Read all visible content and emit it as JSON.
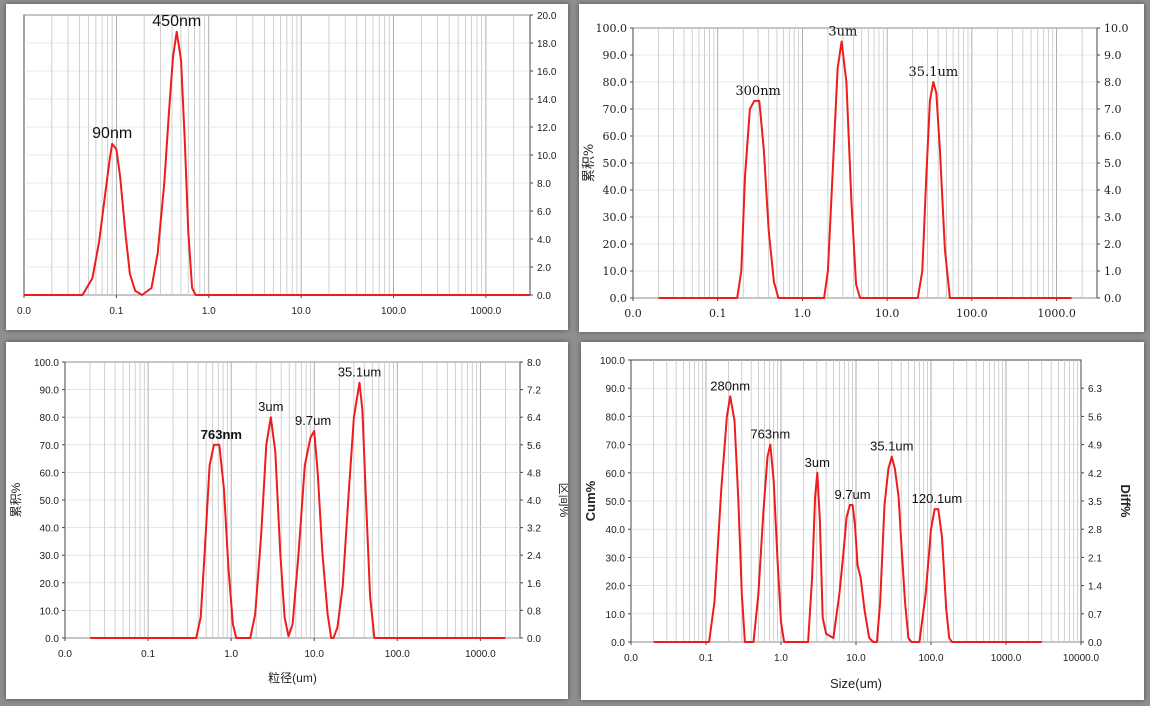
{
  "chart_data": [
    {
      "type": "line",
      "title": "",
      "xlabel": "",
      "ylabel_left": "",
      "ylabel_right": "",
      "x_scale": "log",
      "xlim": [
        0.01,
        3000
      ],
      "x_ticks": [
        {
          "value": 0.01,
          "label": "0.0"
        },
        {
          "value": 0.1,
          "label": "0.1"
        },
        {
          "value": 1,
          "label": "1.0"
        },
        {
          "value": 10,
          "label": "10.0"
        },
        {
          "value": 100,
          "label": "100.0"
        },
        {
          "value": 1000,
          "label": "1000.0"
        }
      ],
      "left_axis": null,
      "right_axis": {
        "lim": [
          0,
          20
        ],
        "ticks": [
          0,
          2,
          4,
          6,
          8,
          10,
          12,
          14,
          16,
          18,
          20
        ],
        "labels": [
          "0.0",
          "2.0",
          "4.0",
          "6.0",
          "8.0",
          "10.0",
          "12.0",
          "14.0",
          "16.0",
          "18.0",
          "20.0"
        ]
      },
      "grid": true,
      "series": [
        {
          "points": [
            [
              0.01,
              0
            ],
            [
              0.043,
              0
            ],
            [
              0.055,
              1.2
            ],
            [
              0.065,
              3.8
            ],
            [
              0.075,
              7.0
            ],
            [
              0.085,
              9.8
            ],
            [
              0.09,
              10.8
            ],
            [
              0.1,
              10.4
            ],
            [
              0.11,
              8.4
            ],
            [
              0.125,
              4.5
            ],
            [
              0.14,
              1.5
            ],
            [
              0.16,
              0.3
            ],
            [
              0.19,
              0
            ],
            [
              0.24,
              0.5
            ],
            [
              0.28,
              3.0
            ],
            [
              0.33,
              8.0
            ],
            [
              0.37,
              13.0
            ],
            [
              0.41,
              17.0
            ],
            [
              0.45,
              18.8
            ],
            [
              0.5,
              16.8
            ],
            [
              0.55,
              11.0
            ],
            [
              0.6,
              4.5
            ],
            [
              0.66,
              0.5
            ],
            [
              0.72,
              0
            ],
            [
              3000,
              0
            ]
          ]
        }
      ],
      "annotations": [
        {
          "text": "90nm",
          "x": 0.09,
          "y": 10.8
        },
        {
          "text": "450nm",
          "x": 0.45,
          "y": 18.8
        }
      ]
    },
    {
      "type": "line",
      "title": "",
      "xlabel": "",
      "ylabel_left": "累积%",
      "ylabel_right": "",
      "x_scale": "log",
      "xlim": [
        0.01,
        3000
      ],
      "x_ticks": [
        {
          "value": 0.01,
          "label": "0.0"
        },
        {
          "value": 0.1,
          "label": "0.1"
        },
        {
          "value": 1,
          "label": "1.0"
        },
        {
          "value": 10,
          "label": "10.0"
        },
        {
          "value": 100,
          "label": "100.0"
        },
        {
          "value": 1000,
          "label": "1000.0"
        }
      ],
      "left_axis": {
        "lim": [
          0,
          100
        ],
        "ticks": [
          0,
          10,
          20,
          30,
          40,
          50,
          60,
          70,
          80,
          90,
          100
        ],
        "labels": [
          "0.0",
          "10.0",
          "20.0",
          "30.0",
          "40.0",
          "50.0",
          "60.0",
          "70.0",
          "80.0",
          "90.0",
          "100.0"
        ]
      },
      "right_axis": {
        "lim": [
          0,
          10
        ],
        "ticks": [
          0,
          1,
          2,
          3,
          4,
          5,
          6,
          7,
          8,
          9,
          10
        ],
        "labels": [
          "0.0",
          "1.0",
          "2.0",
          "3.0",
          "4.0",
          "5.0",
          "6.0",
          "7.0",
          "8.0",
          "9.0",
          "10.0"
        ]
      },
      "grid": true,
      "series": [
        {
          "points": [
            [
              0.02,
              0
            ],
            [
              0.17,
              0
            ],
            [
              0.19,
              1.0
            ],
            [
              0.21,
              4.5
            ],
            [
              0.24,
              7.0
            ],
            [
              0.27,
              7.3
            ],
            [
              0.31,
              7.3
            ],
            [
              0.35,
              5.5
            ],
            [
              0.4,
              2.5
            ],
            [
              0.46,
              0.6
            ],
            [
              0.52,
              0
            ],
            [
              1.8,
              0
            ],
            [
              2.0,
              1.0
            ],
            [
              2.3,
              5.0
            ],
            [
              2.6,
              8.5
            ],
            [
              2.9,
              9.5
            ],
            [
              3.3,
              8.0
            ],
            [
              3.8,
              3.5
            ],
            [
              4.3,
              0.5
            ],
            [
              4.8,
              0
            ],
            [
              23,
              0
            ],
            [
              26,
              1.0
            ],
            [
              29,
              4.5
            ],
            [
              32,
              7.3
            ],
            [
              35.1,
              8.0
            ],
            [
              38,
              7.6
            ],
            [
              42,
              5.5
            ],
            [
              48,
              1.8
            ],
            [
              55,
              0
            ],
            [
              1500,
              0
            ]
          ]
        }
      ],
      "annotations": [
        {
          "text": "300nm",
          "x": 0.3,
          "y": 7.3
        },
        {
          "text": "3um",
          "x": 3,
          "y": 9.5
        },
        {
          "text": "35.1um",
          "x": 35.1,
          "y": 8.0
        }
      ]
    },
    {
      "type": "line",
      "title": "",
      "xlabel": "粒径(um)",
      "ylabel_left": "累积%",
      "ylabel_right": "区间%",
      "x_scale": "log",
      "xlim": [
        0.01,
        3000
      ],
      "x_ticks": [
        {
          "value": 0.01,
          "label": "0.0"
        },
        {
          "value": 0.1,
          "label": "0.1"
        },
        {
          "value": 1,
          "label": "1.0"
        },
        {
          "value": 10,
          "label": "10.0"
        },
        {
          "value": 100,
          "label": "100.0"
        },
        {
          "value": 1000,
          "label": "1000.0"
        }
      ],
      "left_axis": {
        "lim": [
          0,
          100
        ],
        "ticks": [
          0,
          10,
          20,
          30,
          40,
          50,
          60,
          70,
          80,
          90,
          100
        ],
        "labels": [
          "0.0",
          "10.0",
          "20.0",
          "30.0",
          "40.0",
          "50.0",
          "60.0",
          "70.0",
          "80.0",
          "90.0",
          "100.0"
        ]
      },
      "right_axis": {
        "lim": [
          0,
          8
        ],
        "ticks": [
          0,
          0.8,
          1.6,
          2.4,
          3.2,
          4.0,
          4.8,
          5.6,
          6.4,
          7.2,
          8.0
        ],
        "labels": [
          "0.0",
          "0.8",
          "1.6",
          "2.4",
          "3.2",
          "4.0",
          "4.8",
          "5.6",
          "6.4",
          "7.2",
          "8.0"
        ]
      },
      "grid": true,
      "series": [
        {
          "points": [
            [
              0.02,
              0
            ],
            [
              0.38,
              0
            ],
            [
              0.43,
              0.6
            ],
            [
              0.48,
              2.5
            ],
            [
              0.55,
              5.0
            ],
            [
              0.62,
              5.6
            ],
            [
              0.72,
              5.6
            ],
            [
              0.82,
              4.3
            ],
            [
              0.93,
              2.0
            ],
            [
              1.05,
              0.4
            ],
            [
              1.15,
              0
            ],
            [
              1.7,
              0
            ],
            [
              1.95,
              0.7
            ],
            [
              2.3,
              3.0
            ],
            [
              2.65,
              5.6
            ],
            [
              3.0,
              6.4
            ],
            [
              3.4,
              5.4
            ],
            [
              3.9,
              2.5
            ],
            [
              4.4,
              0.6
            ],
            [
              4.9,
              0.05
            ],
            [
              5.5,
              0.4
            ],
            [
              6.5,
              2.5
            ],
            [
              7.7,
              5.0
            ],
            [
              9.0,
              5.8
            ],
            [
              10.0,
              6.0
            ],
            [
              11.0,
              4.8
            ],
            [
              12.5,
              2.5
            ],
            [
              14.5,
              0.7
            ],
            [
              16,
              0
            ],
            [
              17,
              0
            ],
            [
              19,
              0.3
            ],
            [
              22,
              1.5
            ],
            [
              26,
              4.2
            ],
            [
              30,
              6.4
            ],
            [
              35.1,
              7.4
            ],
            [
              38,
              6.6
            ],
            [
              42,
              4.0
            ],
            [
              47,
              1.2
            ],
            [
              53,
              0
            ],
            [
              2000,
              0
            ]
          ]
        }
      ],
      "annotations": [
        {
          "text": "763nm",
          "x": 0.763,
          "y": 5.6,
          "bold": true
        },
        {
          "text": "3um",
          "x": 3,
          "y": 6.4
        },
        {
          "text": "9.7um",
          "x": 9.7,
          "y": 6.0
        },
        {
          "text": "35.1um",
          "x": 35.1,
          "y": 7.4
        }
      ]
    },
    {
      "type": "line",
      "title": "",
      "xlabel": "Size(um)",
      "ylabel_left": "Cum%",
      "ylabel_right": "Diff%",
      "x_scale": "log",
      "xlim": [
        0.01,
        10000
      ],
      "x_ticks": [
        {
          "value": 0.01,
          "label": "0.0"
        },
        {
          "value": 0.1,
          "label": "0.1"
        },
        {
          "value": 1,
          "label": "1.0"
        },
        {
          "value": 10,
          "label": "10.0"
        },
        {
          "value": 100,
          "label": "100.0"
        },
        {
          "value": 1000,
          "label": "1000.0"
        },
        {
          "value": 10000,
          "label": "10000.0"
        }
      ],
      "left_axis": {
        "lim": [
          0,
          100
        ],
        "ticks": [
          0,
          10,
          20,
          30,
          40,
          50,
          60,
          70,
          80,
          90,
          100
        ],
        "labels": [
          "0.0",
          "10.0",
          "20.0",
          "30.0",
          "40.0",
          "50.0",
          "60.0",
          "70.0",
          "80.0",
          "90.0",
          "100.0"
        ]
      },
      "right_axis": {
        "lim": [
          0,
          7
        ],
        "ticks": [
          0,
          0.7,
          1.4,
          2.1,
          2.8,
          3.5,
          4.2,
          4.9,
          5.6,
          6.3
        ],
        "labels": [
          "0.0",
          "0.7",
          "1.4",
          "2.1",
          "2.8",
          "3.5",
          "4.2",
          "4.9",
          "5.6",
          "6.3"
        ]
      },
      "grid": true,
      "series": [
        {
          "points": [
            [
              0.02,
              0
            ],
            [
              0.11,
              0
            ],
            [
              0.13,
              1.0
            ],
            [
              0.16,
              3.8
            ],
            [
              0.19,
              5.6
            ],
            [
              0.21,
              6.1
            ],
            [
              0.24,
              5.5
            ],
            [
              0.27,
              3.5
            ],
            [
              0.3,
              1.2
            ],
            [
              0.33,
              0
            ],
            [
              0.43,
              0
            ],
            [
              0.5,
              1.2
            ],
            [
              0.58,
              3.2
            ],
            [
              0.66,
              4.6
            ],
            [
              0.72,
              4.9
            ],
            [
              0.8,
              4.0
            ],
            [
              0.9,
              2.0
            ],
            [
              1.0,
              0.5
            ],
            [
              1.1,
              0
            ],
            [
              2.3,
              0
            ],
            [
              2.6,
              1.6
            ],
            [
              2.85,
              3.6
            ],
            [
              3.05,
              4.2
            ],
            [
              3.3,
              3.0
            ],
            [
              3.6,
              0.6
            ],
            [
              4.0,
              0.2
            ],
            [
              5.0,
              0.1
            ],
            [
              6.0,
              1.2
            ],
            [
              6.8,
              2.2
            ],
            [
              7.5,
              3.1
            ],
            [
              8.3,
              3.4
            ],
            [
              9.0,
              3.4
            ],
            [
              9.7,
              2.9
            ],
            [
              10.5,
              1.9
            ],
            [
              11.5,
              1.6
            ],
            [
              13,
              0.8
            ],
            [
              15,
              0.1
            ],
            [
              17,
              0
            ],
            [
              19,
              0
            ],
            [
              21,
              1.0
            ],
            [
              24,
              3.4
            ],
            [
              27,
              4.3
            ],
            [
              30,
              4.6
            ],
            [
              33,
              4.3
            ],
            [
              37,
              3.6
            ],
            [
              40,
              2.5
            ],
            [
              45,
              1.0
            ],
            [
              50,
              0.1
            ],
            [
              55,
              0
            ],
            [
              70,
              0
            ],
            [
              85,
              1.2
            ],
            [
              100,
              2.8
            ],
            [
              112,
              3.3
            ],
            [
              125,
              3.3
            ],
            [
              140,
              2.6
            ],
            [
              160,
              0.8
            ],
            [
              175,
              0.1
            ],
            [
              190,
              0
            ],
            [
              3000,
              0
            ]
          ]
        }
      ],
      "annotations": [
        {
          "text": "280nm",
          "x": 0.21,
          "y": 6.1
        },
        {
          "text": "763nm",
          "x": 0.72,
          "y": 4.9
        },
        {
          "text": "3um",
          "x": 3.05,
          "y": 4.2
        },
        {
          "text": "9.7um",
          "x": 9.0,
          "y": 3.4
        },
        {
          "text": "35.1um",
          "x": 30,
          "y": 4.6
        },
        {
          "text": "120.1um",
          "x": 120,
          "y": 3.3
        }
      ]
    }
  ]
}
